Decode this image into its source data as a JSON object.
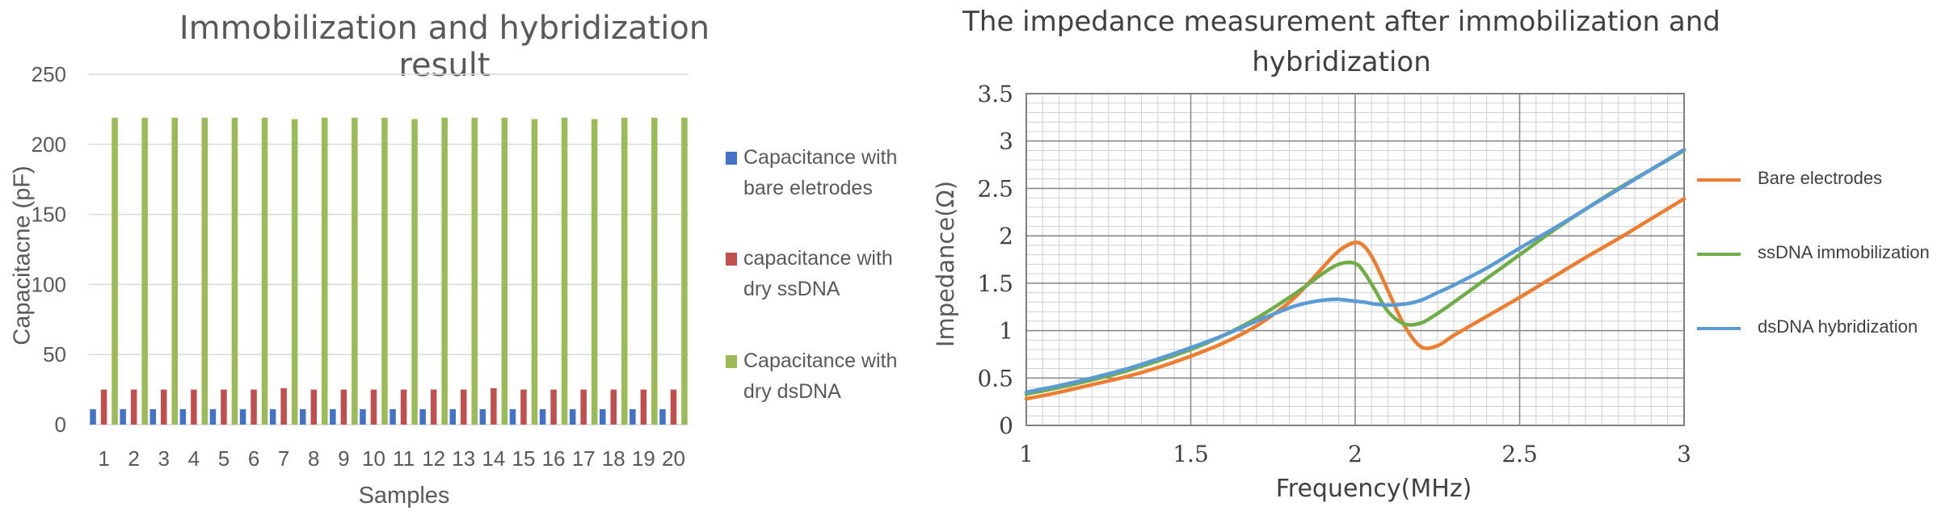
{
  "chart_data": [
    {
      "type": "bar",
      "title": "Immobilization and hybridization result",
      "xlabel": "Samples",
      "ylabel": "Capacitacne (pF)",
      "ylim": [
        0,
        250
      ],
      "yticks": [
        0,
        50,
        100,
        150,
        200,
        250
      ],
      "grid": true,
      "legend_position": "right",
      "categories": [
        "1",
        "2",
        "3",
        "4",
        "5",
        "6",
        "7",
        "8",
        "9",
        "10",
        "11",
        "12",
        "13",
        "14",
        "15",
        "16",
        "17",
        "18",
        "19",
        "20"
      ],
      "series": [
        {
          "name": "Capacitance with bare eletrodes",
          "color": "#4472C4",
          "values": [
            11,
            11,
            11,
            11,
            11,
            11,
            11,
            11,
            11,
            11,
            11,
            11,
            11,
            11,
            11,
            11,
            11,
            11,
            11,
            11
          ]
        },
        {
          "name": "capacitance with dry ssDNA",
          "color": "#C0504D",
          "values": [
            25,
            25,
            25,
            25,
            25,
            25,
            26,
            25,
            25,
            25,
            25,
            25,
            25,
            26,
            25,
            25,
            25,
            25,
            25,
            25
          ]
        },
        {
          "name": "Capacitance with dry dsDNA",
          "color": "#9BBB59",
          "values": [
            219,
            219,
            219,
            219,
            219,
            219,
            218,
            219,
            219,
            219,
            218,
            219,
            219,
            219,
            218,
            219,
            218,
            219,
            219,
            219
          ]
        }
      ]
    },
    {
      "type": "line",
      "title": "The impedance measurement after immobilization and hybridization",
      "xlabel": "Frequency(MHz)",
      "ylabel": "Impedance(Ω)",
      "xlim": [
        1,
        3
      ],
      "ylim": [
        0,
        3.5
      ],
      "xticks": [
        "1",
        "1.5",
        "2",
        "2.5",
        "3"
      ],
      "yticks": [
        "0",
        "0.5",
        "1",
        "1.5",
        "2",
        "2.5",
        "3",
        "3.5"
      ],
      "grid": true,
      "legend_position": "right",
      "x": [
        1.0,
        1.1,
        1.2,
        1.3,
        1.4,
        1.5,
        1.6,
        1.7,
        1.8,
        1.85,
        1.9,
        1.95,
        2.0,
        2.03,
        2.06,
        2.1,
        2.15,
        2.2,
        2.25,
        2.3,
        2.4,
        2.5,
        2.6,
        2.7,
        2.8,
        2.9,
        3.0
      ],
      "series": [
        {
          "name": "Bare electrodes",
          "color": "#ED7D31",
          "values": [
            0.28,
            0.35,
            0.43,
            0.51,
            0.61,
            0.73,
            0.87,
            1.05,
            1.3,
            1.47,
            1.66,
            1.84,
            1.93,
            1.88,
            1.72,
            1.42,
            1.05,
            0.83,
            0.84,
            0.95,
            1.15,
            1.35,
            1.56,
            1.77,
            1.97,
            2.18,
            2.39
          ]
        },
        {
          "name": "ssDNA immobilization",
          "color": "#70AD47",
          "values": [
            0.33,
            0.4,
            0.48,
            0.57,
            0.68,
            0.8,
            0.95,
            1.13,
            1.35,
            1.47,
            1.6,
            1.7,
            1.71,
            1.6,
            1.43,
            1.2,
            1.07,
            1.08,
            1.18,
            1.3,
            1.55,
            1.8,
            2.05,
            2.28,
            2.5,
            2.7,
            2.9
          ]
        },
        {
          "name": "dsDNA hybridization",
          "color": "#5B9BD5",
          "values": [
            0.35,
            0.42,
            0.5,
            0.59,
            0.7,
            0.82,
            0.95,
            1.1,
            1.24,
            1.29,
            1.32,
            1.33,
            1.31,
            1.3,
            1.28,
            1.27,
            1.28,
            1.32,
            1.4,
            1.48,
            1.66,
            1.87,
            2.07,
            2.28,
            2.49,
            2.7,
            2.91
          ]
        }
      ]
    }
  ]
}
